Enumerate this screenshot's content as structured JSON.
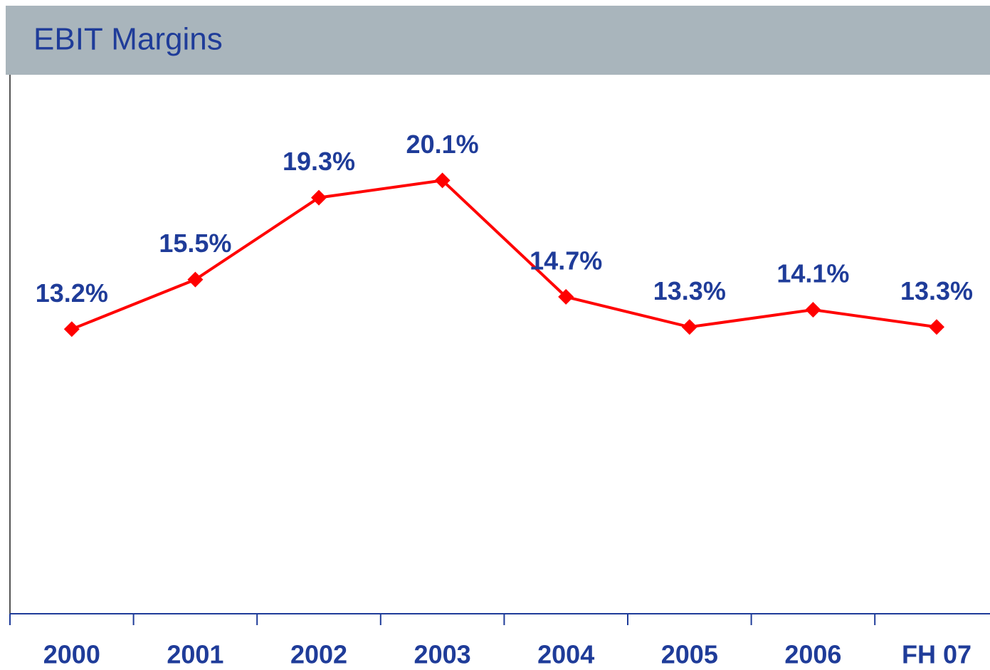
{
  "chart_data": {
    "type": "line",
    "title": "EBIT Margins",
    "categories": [
      "2000",
      "2001",
      "2002",
      "2003",
      "2004",
      "2005",
      "2006",
      "FH 07"
    ],
    "values": [
      13.2,
      15.5,
      19.3,
      20.1,
      14.7,
      13.3,
      14.1,
      13.3
    ],
    "value_labels": [
      "13.2%",
      "15.5%",
      "19.3%",
      "20.1%",
      "14.7%",
      "13.3%",
      "14.1%",
      "13.3%"
    ],
    "color": "#ff0000",
    "ylim": [
      0,
      25
    ]
  }
}
